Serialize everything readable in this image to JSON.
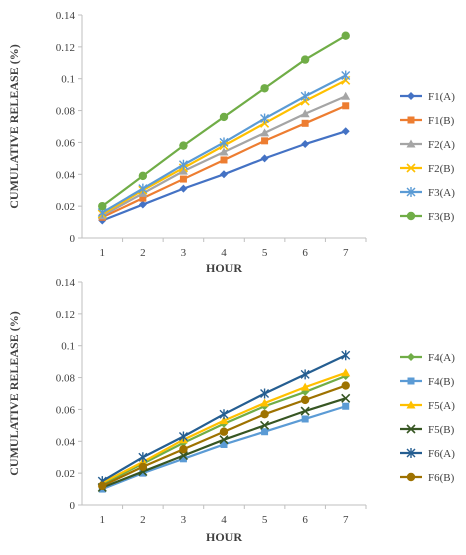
{
  "chart_data": [
    {
      "type": "line",
      "title": "",
      "xlabel": "HOUR",
      "ylabel": "CUMULATIVE RELEASE (%)",
      "x": [
        1,
        2,
        3,
        4,
        5,
        6,
        7
      ],
      "xticks": [
        "1",
        "2",
        "3",
        "4",
        "5",
        "6",
        "7"
      ],
      "ylim": [
        0,
        0.14
      ],
      "yticks": [
        "0",
        "0.02",
        "0.04",
        "0.06",
        "0.08",
        "0.1",
        "0.12",
        "0.14"
      ],
      "grid": false,
      "legend": "right",
      "series": [
        {
          "name": "F1(A)",
          "color": "#4472C4",
          "marker": "diamond",
          "values": [
            0.011,
            0.021,
            0.031,
            0.04,
            0.05,
            0.059,
            0.067
          ]
        },
        {
          "name": "F1(B)",
          "color": "#ED7D31",
          "marker": "square",
          "values": [
            0.013,
            0.025,
            0.037,
            0.049,
            0.061,
            0.072,
            0.083
          ]
        },
        {
          "name": "F2(A)",
          "color": "#A5A5A5",
          "marker": "triangle",
          "values": [
            0.014,
            0.028,
            0.042,
            0.054,
            0.066,
            0.078,
            0.089
          ]
        },
        {
          "name": "F2(B)",
          "color": "#FFC000",
          "marker": "x",
          "values": [
            0.015,
            0.03,
            0.044,
            0.058,
            0.072,
            0.086,
            0.099
          ]
        },
        {
          "name": "F3(A)",
          "color": "#5B9BD5",
          "marker": "star",
          "values": [
            0.016,
            0.031,
            0.046,
            0.06,
            0.075,
            0.089,
            0.102
          ]
        },
        {
          "name": "F3(B)",
          "color": "#70AD47",
          "marker": "circle",
          "values": [
            0.02,
            0.039,
            0.058,
            0.076,
            0.094,
            0.112,
            0.127
          ]
        }
      ]
    },
    {
      "type": "line",
      "title": "",
      "xlabel": "HOUR",
      "ylabel": "CUMULATIVE RELEASE (%)",
      "x": [
        1,
        2,
        3,
        4,
        5,
        6,
        7
      ],
      "xticks": [
        "1",
        "2",
        "3",
        "4",
        "5",
        "6",
        "7"
      ],
      "ylim": [
        0,
        0.14
      ],
      "yticks": [
        "0",
        "0.02",
        "0.04",
        "0.06",
        "0.08",
        "0.1",
        "0.12",
        "0.14"
      ],
      "grid": false,
      "legend": "right",
      "series": [
        {
          "name": "F4(A)",
          "color": "#70AD47",
          "marker": "diamond",
          "values": [
            0.013,
            0.026,
            0.039,
            0.051,
            0.062,
            0.071,
            0.081
          ]
        },
        {
          "name": "F4(B)",
          "color": "#5B9BD5",
          "marker": "square",
          "values": [
            0.01,
            0.02,
            0.029,
            0.038,
            0.046,
            0.054,
            0.062
          ]
        },
        {
          "name": "F5(A)",
          "color": "#FFC000",
          "marker": "triangle",
          "values": [
            0.014,
            0.027,
            0.041,
            0.053,
            0.064,
            0.074,
            0.083
          ]
        },
        {
          "name": "F5(B)",
          "color": "#375623",
          "marker": "x",
          "values": [
            0.011,
            0.021,
            0.031,
            0.041,
            0.05,
            0.059,
            0.067
          ]
        },
        {
          "name": "F6(A)",
          "color": "#255E91",
          "marker": "star",
          "values": [
            0.015,
            0.03,
            0.043,
            0.057,
            0.07,
            0.082,
            0.094
          ]
        },
        {
          "name": "F6(B)",
          "color": "#9E7200",
          "marker": "circle",
          "values": [
            0.012,
            0.024,
            0.035,
            0.046,
            0.057,
            0.066,
            0.075
          ]
        }
      ]
    }
  ]
}
